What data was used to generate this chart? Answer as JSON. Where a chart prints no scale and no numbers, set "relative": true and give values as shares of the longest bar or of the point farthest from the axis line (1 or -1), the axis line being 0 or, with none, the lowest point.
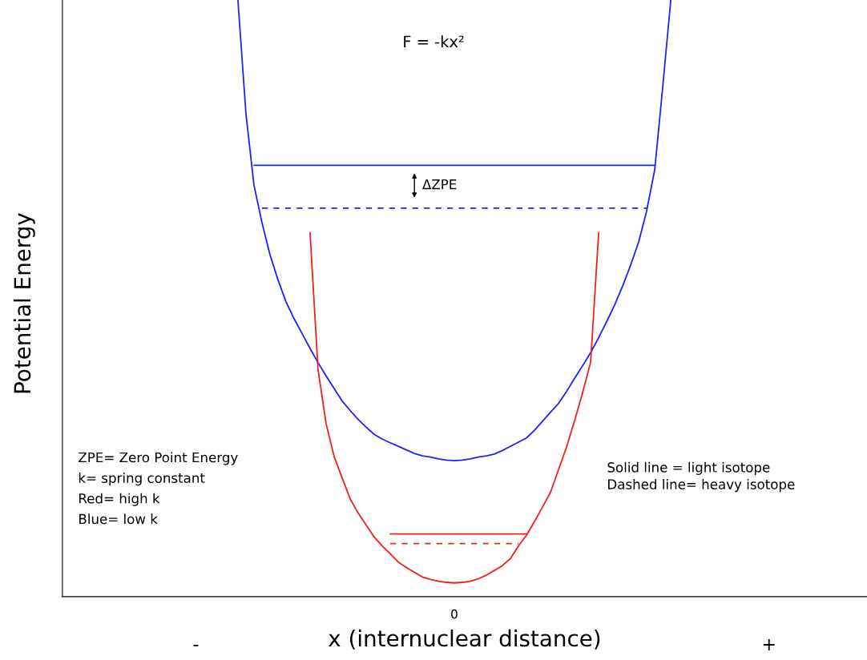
{
  "chart_data": {
    "type": "line",
    "relative": true,
    "xlabel": "x (internuclear distance)",
    "categories": [
      null,
      null,
      null,
      null,
      null,
      null,
      null,
      null,
      null,
      null,
      null,
      null,
      null,
      null,
      null,
      null,
      null,
      null,
      null,
      null,
      null,
      null,
      null,
      null,
      null,
      null,
      null,
      null,
      null,
      null,
      null,
      null,
      null,
      null,
      null,
      null,
      null,
      null,
      null,
      null,
      null,
      null,
      null,
      null,
      null,
      null,
      null,
      null,
      null,
      null,
      null,
      null,
      null,
      null,
      null
    ],
    "annotations": [
      "F = -kx²",
      "ΔZPE",
      "ZPE= Zero Point Energy\nk= spring constant\nRed= high k\nBlue= low k",
      "Solid line = light isotope\nDashed line= heavy isotope",
      "-",
      "0",
      "+",
      "Potential Energy"
    ],
    "series": [
      {
        "color": "#1f1fff",
        "values": [
          1.0,
          0.81,
          0.69,
          0.627,
          0.573,
          0.531,
          0.494,
          0.466,
          0.441,
          0.416,
          0.392,
          0.37,
          0.349,
          0.328,
          0.312,
          0.297,
          0.284,
          0.272,
          0.264,
          0.258,
          0.252,
          0.246,
          0.24,
          0.236,
          0.234,
          0.231,
          0.229,
          0.228,
          0.229,
          0.231,
          0.234,
          0.236,
          0.239,
          0.245,
          0.252,
          0.259,
          0.266,
          0.279,
          0.294,
          0.309,
          0.324,
          0.344,
          0.366,
          0.387,
          0.409,
          0.434,
          0.461,
          0.489,
          0.521,
          0.556,
          0.595,
          0.647,
          0.716,
          0.855,
          1.0
        ]
      },
      {
        "color": "#f02020",
        "values": [
          null,
          null,
          null,
          null,
          null,
          null,
          null,
          null,
          null,
          0.61,
          0.38,
          0.29,
          0.235,
          0.199,
          0.164,
          0.14,
          0.12,
          0.1,
          0.085,
          0.072,
          0.058,
          0.049,
          0.041,
          0.033,
          0.029,
          0.026,
          0.024,
          0.023,
          0.024,
          0.026,
          0.03,
          0.036,
          0.044,
          0.052,
          0.064,
          0.085,
          0.103,
          0.126,
          0.15,
          0.175,
          0.213,
          0.251,
          0.295,
          0.342,
          0.393,
          0.61,
          null,
          null,
          null,
          null,
          null,
          null,
          null,
          null,
          null
        ]
      },
      {
        "color": "#1f1fff",
        "values": [
          null,
          null,
          0.723,
          0.723,
          0.723,
          0.723,
          0.723,
          0.723,
          0.723,
          0.723,
          0.723,
          0.723,
          0.723,
          0.723,
          0.723,
          0.723,
          0.723,
          0.723,
          0.723,
          0.723,
          0.723,
          0.723,
          0.723,
          0.723,
          0.723,
          0.723,
          0.723,
          0.723,
          0.723,
          0.723,
          0.723,
          0.723,
          0.723,
          0.723,
          0.723,
          0.723,
          0.723,
          0.723,
          0.723,
          0.723,
          0.723,
          0.723,
          0.723,
          0.723,
          0.723,
          0.723,
          0.723,
          0.723,
          0.723,
          0.723,
          0.723,
          0.723,
          0.723,
          null,
          null
        ]
      },
      {
        "color": "#1f1fff",
        "line_style": "dashed",
        "values": [
          null,
          null,
          null,
          0.651,
          0.651,
          0.651,
          0.651,
          0.651,
          0.651,
          0.651,
          0.651,
          0.651,
          0.651,
          0.651,
          0.651,
          0.651,
          0.651,
          0.651,
          0.651,
          0.651,
          0.651,
          0.651,
          0.651,
          0.651,
          0.651,
          0.651,
          0.651,
          0.651,
          0.651,
          0.651,
          0.651,
          0.651,
          0.651,
          0.651,
          0.651,
          0.651,
          0.651,
          0.651,
          0.651,
          0.651,
          0.651,
          0.651,
          0.651,
          0.651,
          0.651,
          0.651,
          0.651,
          0.651,
          0.651,
          0.651,
          0.651,
          0.651,
          null,
          null,
          null
        ]
      },
      {
        "color": "#f02020",
        "values": [
          null,
          null,
          null,
          null,
          null,
          null,
          null,
          null,
          null,
          null,
          null,
          null,
          null,
          null,
          null,
          null,
          null,
          null,
          null,
          0.105,
          0.105,
          0.105,
          0.105,
          0.105,
          0.105,
          0.105,
          0.105,
          0.105,
          0.105,
          0.105,
          0.105,
          0.105,
          0.105,
          0.105,
          0.105,
          0.105,
          0.105,
          null,
          null,
          null,
          null,
          null,
          null,
          null,
          null,
          null,
          null,
          null,
          null,
          null,
          null,
          null,
          null,
          null,
          null
        ]
      },
      {
        "color": "#f02020",
        "line_style": "dashed",
        "values": [
          null,
          null,
          null,
          null,
          null,
          null,
          null,
          null,
          null,
          null,
          null,
          null,
          null,
          null,
          null,
          null,
          null,
          null,
          null,
          0.089,
          0.089,
          0.089,
          0.089,
          0.089,
          0.089,
          0.089,
          0.089,
          0.089,
          0.089,
          0.089,
          0.089,
          0.089,
          0.089,
          0.089,
          0.089,
          0.089,
          null,
          null,
          null,
          null,
          null,
          null,
          null,
          null,
          null,
          null,
          null,
          null,
          null,
          null,
          null,
          null,
          null,
          null,
          null
        ]
      }
    ]
  }
}
